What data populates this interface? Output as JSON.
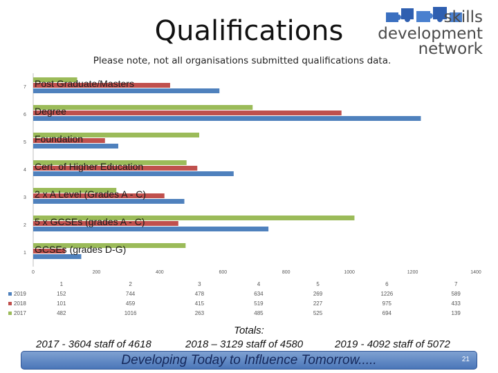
{
  "title": "Qualifications",
  "subtitle": "Please note, not all organisations submitted qualifications data.",
  "logo": {
    "line1": "skills",
    "line2": "development",
    "line3": "network",
    "icon": "puzzle-pieces-icon"
  },
  "colors": {
    "2019": "#4f81bd",
    "2018": "#c0504d",
    "2017": "#9bbb59"
  },
  "chart_data": {
    "type": "bar",
    "orientation": "horizontal",
    "categories": [
      "1",
      "2",
      "3",
      "4",
      "5",
      "6",
      "7"
    ],
    "category_labels": [
      "GCSEs (grades D-G)",
      "5 x GCSEs (grades A - C)",
      "2 x A Level (Grades A - C)",
      "Cert. of Higher Education",
      "Foundation",
      "Degree",
      "Post Graduate/Masters"
    ],
    "series": [
      {
        "name": "2019",
        "values": [
          152,
          744,
          478,
          634,
          269,
          1226,
          589
        ]
      },
      {
        "name": "2018",
        "values": [
          101,
          459,
          415,
          519,
          227,
          975,
          433
        ]
      },
      {
        "name": "2017",
        "values": [
          482,
          1016,
          263,
          485,
          525,
          694,
          139
        ]
      }
    ],
    "xlim": [
      0,
      1400
    ],
    "xticks": [
      "0",
      "200",
      "400",
      "600",
      "800",
      "1000",
      "1200",
      "1400"
    ],
    "grid": false
  },
  "totals": {
    "heading": "Totals:",
    "y2017": "2017 - 3604 staff of 4618",
    "y2018": "2018 – 3129 staff of 4580",
    "y2019": "2019 - 4092 staff of 5072"
  },
  "banner": {
    "text": "Developing Today to Influence Tomorrow.....",
    "page": "21"
  }
}
